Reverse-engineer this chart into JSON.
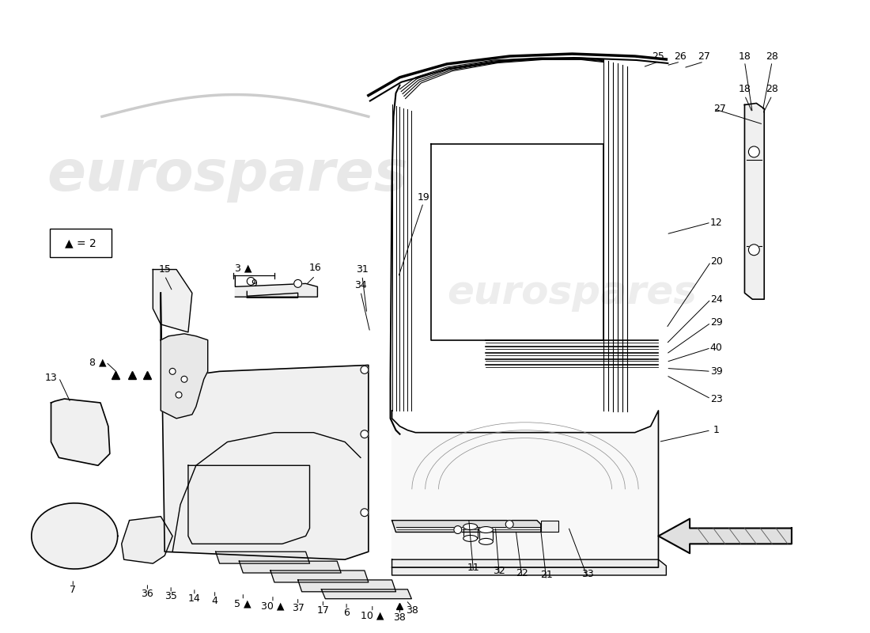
{
  "background_color": "#ffffff",
  "watermark_text": "eurospares",
  "watermark_color": "#cccccc",
  "legend_text": "▲ = 2",
  "line_color": "#000000",
  "font_size": 9,
  "font_size_legend": 10
}
